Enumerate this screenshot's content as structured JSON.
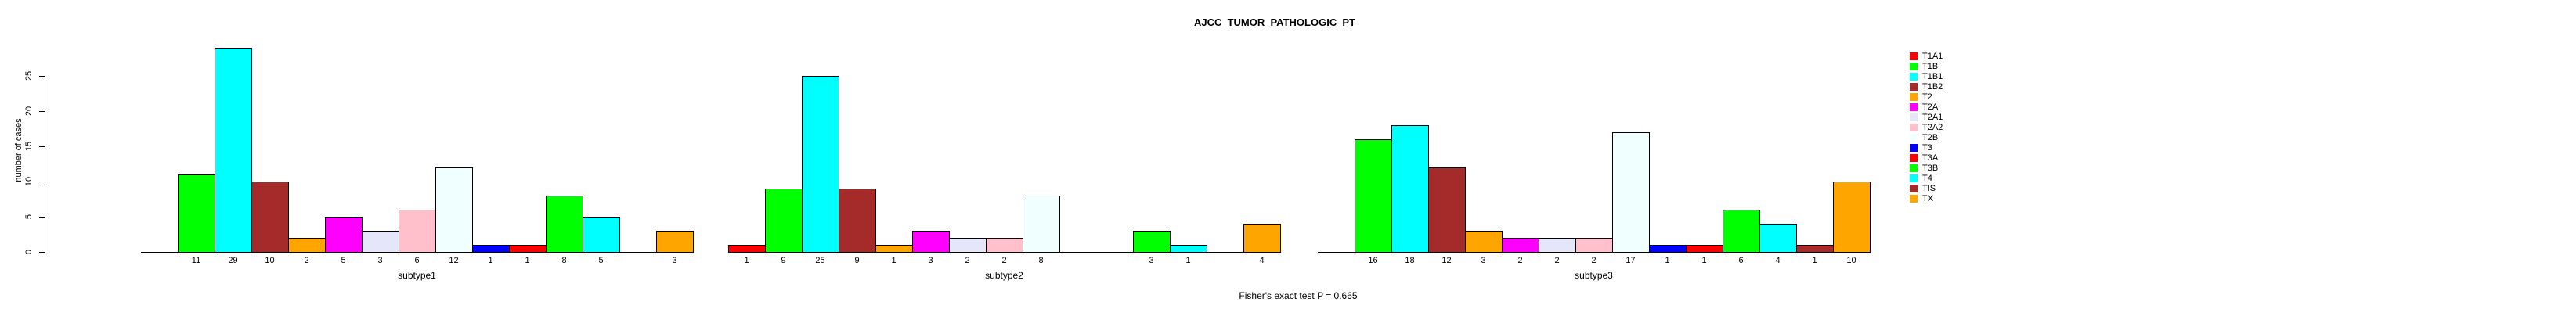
{
  "chart_data": {
    "type": "bar",
    "title": "AJCC_TUMOR_PATHOLOGIC_PT",
    "ylabel": "number of cases",
    "ylim": [
      0,
      25
    ],
    "yticks": [
      0,
      5,
      10,
      15,
      20,
      25
    ],
    "grid": false,
    "legend_position": "right",
    "bar_value_labels": true,
    "categories": [
      "T1A1",
      "T1B",
      "T1B1",
      "T1B2",
      "T2",
      "T2A",
      "T2A1",
      "T2A2",
      "T2B",
      "T3",
      "T3A",
      "T3B",
      "T4",
      "TIS",
      "TX"
    ],
    "category_colors": [
      "#FF0000",
      "#00FF00",
      "#00FFFF",
      "#A52A2A",
      "#FFA500",
      "#FF00FF",
      "#E6E6FA",
      "#FFC0CB",
      "#F0FFFF",
      "#0000FF",
      "#FF0000",
      "#00FF00",
      "#00FFFF",
      "#A52A2A",
      "#FFA500"
    ],
    "groups": [
      {
        "label": "subtype1",
        "values": [
          0,
          11,
          29,
          10,
          2,
          5,
          3,
          6,
          12,
          1,
          1,
          8,
          5,
          0,
          3
        ]
      },
      {
        "label": "subtype2",
        "values": [
          1,
          9,
          25,
          9,
          1,
          3,
          2,
          2,
          8,
          0,
          0,
          3,
          1,
          0,
          4
        ]
      },
      {
        "label": "subtype3",
        "values": [
          0,
          16,
          18,
          12,
          3,
          2,
          2,
          2,
          17,
          1,
          1,
          6,
          4,
          1,
          10
        ]
      }
    ],
    "footnote": "Fisher's exact test P = 0.665",
    "colors": {
      "background": "#FFFFFF",
      "axis": "#000000",
      "text": "#000000"
    }
  }
}
